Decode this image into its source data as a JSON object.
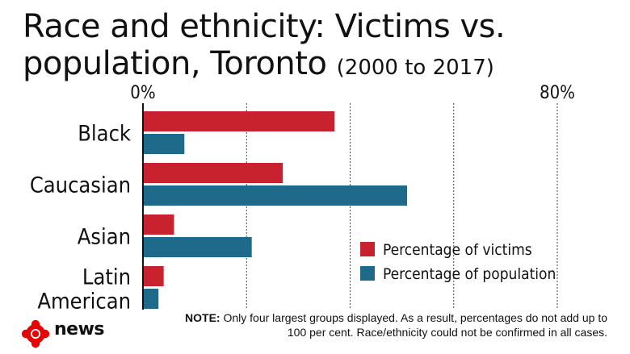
{
  "title": {
    "line1": "Race and ethnicity: Victims vs.",
    "line2": "population, Toronto",
    "range": "(2000 to 2017)"
  },
  "chart_data": {
    "type": "bar",
    "orientation": "horizontal",
    "categories": [
      "Black",
      "Caucasian",
      "Asian",
      "Latin American"
    ],
    "series": [
      {
        "name": "Percentage of victims",
        "color": "#c8222f",
        "values": [
          37,
          27,
          6,
          4
        ]
      },
      {
        "name": "Percentage of population",
        "color": "#1d6a8a",
        "values": [
          8,
          51,
          21,
          3
        ]
      }
    ],
    "tick_labels": [
      "0%",
      "80%"
    ],
    "xlim": [
      0,
      80
    ],
    "gridlines": [
      20,
      40,
      60,
      80
    ],
    "grid": true,
    "legend_position": "bottom-right"
  },
  "note": {
    "label": "NOTE:",
    "text": "Only four largest groups displayed. As a result, percentages do not add up to 100 per cent. Race/ethnicity could not be confirmed in all cases."
  },
  "brand": {
    "name": "news",
    "color": "#e60505"
  }
}
